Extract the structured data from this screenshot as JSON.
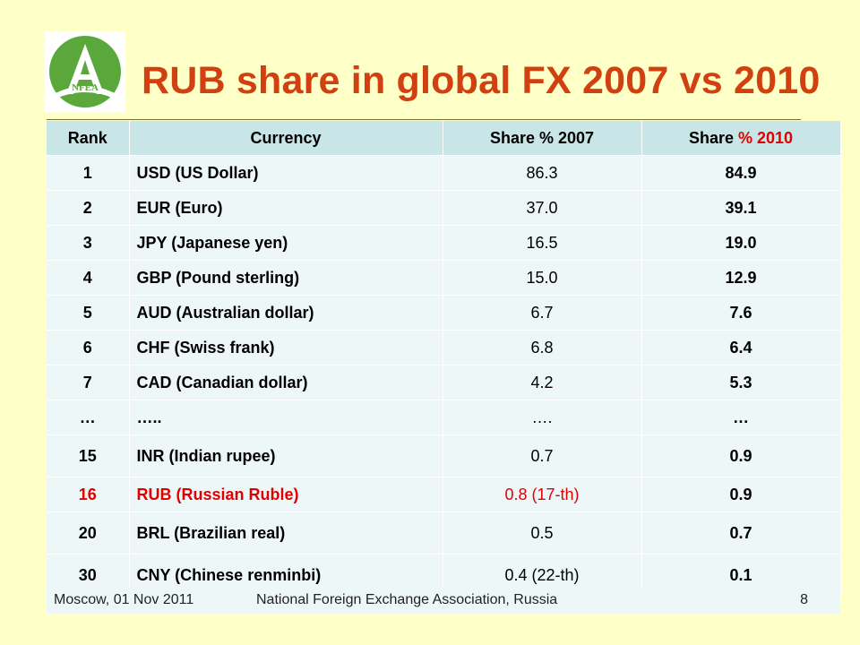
{
  "title": "RUB share in global FX 2007 vs 2010",
  "logo": {
    "icon": "nfea-logo-icon",
    "text": "NFEA",
    "letter": "A",
    "color": "#5aa83c"
  },
  "table": {
    "headers": {
      "rank": "Rank",
      "currency": "Currency",
      "share2007": "Share % 2007",
      "share2010_prefix": "Share ",
      "share2010_red": "% 2010"
    },
    "rows": [
      {
        "rank": "1",
        "currency": "USD (US Dollar)",
        "s2007": "86.3",
        "s2010": "84.9"
      },
      {
        "rank": "2",
        "currency": "EUR (Euro)",
        "s2007": "37.0",
        "s2010": "39.1"
      },
      {
        "rank": "3",
        "currency": "JPY (Japanese yen)",
        "s2007": "16.5",
        "s2010": "19.0"
      },
      {
        "rank": "4",
        "currency": "GBP (Pound sterling)",
        "s2007": "15.0",
        "s2010": "12.9"
      },
      {
        "rank": "5",
        "currency": "AUD (Australian dollar)",
        "s2007": "6.7",
        "s2010": "7.6"
      },
      {
        "rank": "6",
        "currency": "CHF (Swiss frank)",
        "s2007": "6.8",
        "s2010": "6.4"
      },
      {
        "rank": "7",
        "currency": "CAD (Canadian dollar)",
        "s2007": "4.2",
        "s2010": "5.3"
      },
      {
        "rank": "…",
        "currency": "…..",
        "s2007": "….",
        "s2010": "…"
      },
      {
        "rank": "15",
        "currency": "INR (Indian rupee)",
        "s2007": "0.7",
        "s2010": "0.9"
      },
      {
        "rank": "16",
        "currency": "RUB (Russian Ruble)",
        "s2007": "0.8 (17-th)",
        "s2010": "0.9"
      },
      {
        "rank": "20",
        "currency": "BRL (Brazilian real)",
        "s2007": "0.5",
        "s2010": "0.7"
      },
      {
        "rank": "30",
        "currency": "CNY (Chinese renminbi)",
        "s2007": "0.4 (22-th)",
        "s2010": "0.1"
      }
    ]
  },
  "footer": {
    "left": "Moscow, 01 Nov 2011",
    "center": "National Foreign Exchange Association, Russia",
    "page": "8"
  },
  "colors": {
    "title": "#d04010",
    "highlight": "#e00000",
    "background": "#ffffc8",
    "header": "#c8e6e8",
    "cell": "#eef7f8"
  }
}
